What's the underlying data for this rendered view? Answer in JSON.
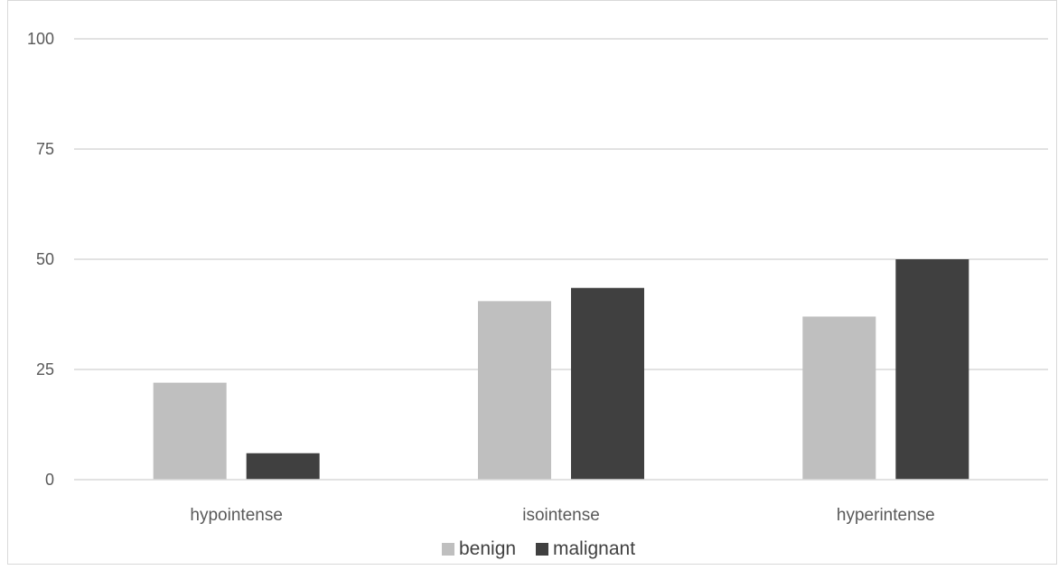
{
  "chart_data": {
    "type": "bar",
    "title": "",
    "xlabel": "",
    "ylabel": "",
    "categories": [
      "hypointense",
      "isointense",
      "hyperintense"
    ],
    "series": [
      {
        "name": "benign",
        "values": [
          22,
          40.5,
          37
        ],
        "color": "#bfbfbf"
      },
      {
        "name": "malignant",
        "values": [
          6,
          43.5,
          50
        ],
        "color": "#404040"
      }
    ],
    "ylim": [
      0,
      100
    ],
    "yticks": [
      "0",
      "25",
      "50",
      "75",
      "100"
    ],
    "grid": true,
    "legend_position": "bottom",
    "gridline_color": "#d9d9d9",
    "axis_color": "#d9d9d9"
  }
}
